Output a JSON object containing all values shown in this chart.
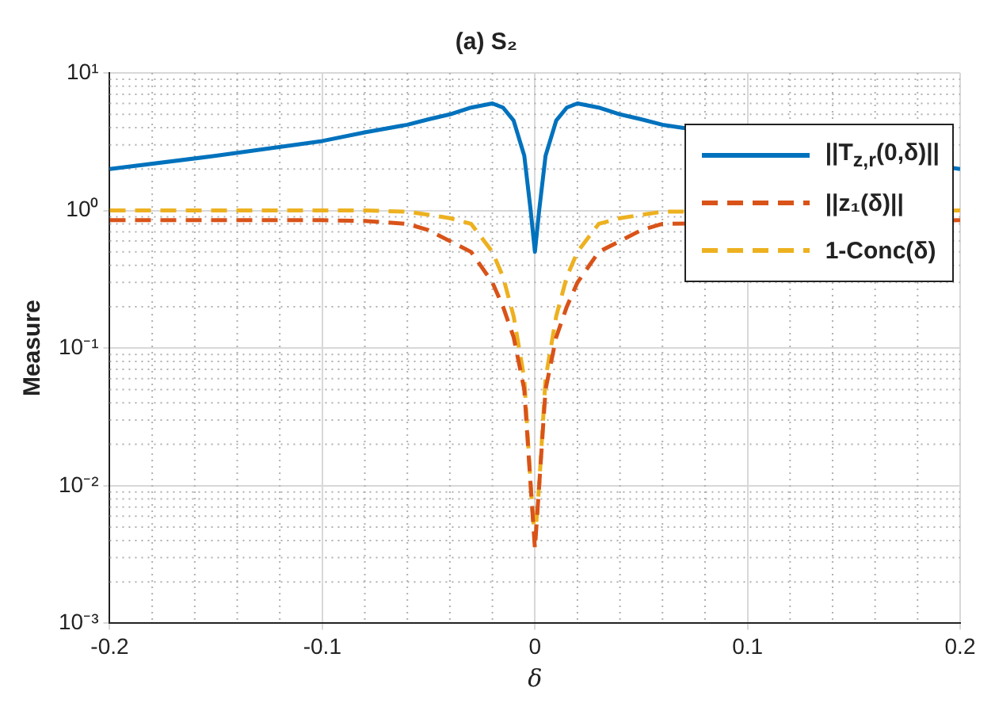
{
  "chart_data": {
    "type": "line",
    "title": "(a) S₂",
    "xlabel": "δ",
    "ylabel": "Measure",
    "log": "y",
    "grid": true,
    "legend": "top right",
    "marker": "none",
    "xlim": [
      -0.2,
      0.2
    ],
    "xticks": [
      -0.2,
      -0.1,
      0,
      0.1,
      0.2
    ],
    "ylim": [
      0.001,
      10
    ],
    "yticks": [
      {
        "value": 0.001,
        "label": "10⁻³"
      },
      {
        "value": 0.01,
        "label": "10⁻²"
      },
      {
        "value": 0.1,
        "label": "10⁻¹"
      },
      {
        "value": 1,
        "label": "10⁰"
      },
      {
        "value": 10,
        "label": "10¹"
      }
    ],
    "x": [
      -0.2,
      -0.15,
      -0.1,
      -0.08,
      -0.06,
      -0.05,
      -0.04,
      -0.03,
      -0.02,
      -0.015,
      -0.01,
      -0.005,
      -0.002,
      0,
      0.002,
      0.005,
      0.01,
      0.015,
      0.02,
      0.03,
      0.04,
      0.05,
      0.06,
      0.08,
      0.1,
      0.15,
      0.2
    ],
    "series": [
      {
        "name": "||T$_{z,r}$(0,δ)||",
        "color": "#0072bd",
        "line_style": "solid",
        "values": [
          2.0,
          2.5,
          3.2,
          3.7,
          4.2,
          4.6,
          5.0,
          5.6,
          6.0,
          5.6,
          4.5,
          2.5,
          1.0,
          0.5,
          1.0,
          2.5,
          4.5,
          5.6,
          6.0,
          5.6,
          5.0,
          4.6,
          4.2,
          null,
          null,
          null,
          2.0
        ]
      },
      {
        "name": "||z₁(δ)||",
        "color": "#d95319",
        "line_style": "dashed",
        "values": [
          0.85,
          0.85,
          0.85,
          0.84,
          0.8,
          0.72,
          0.6,
          0.5,
          0.3,
          0.2,
          0.12,
          0.05,
          0.01,
          0.0035,
          0.01,
          0.05,
          0.12,
          0.2,
          0.3,
          0.5,
          0.6,
          0.72,
          0.8,
          null,
          null,
          null,
          0.85
        ]
      },
      {
        "name": "1-Conc(δ)",
        "color": "#edb120",
        "line_style": "dashed",
        "values": [
          1.0,
          1.0,
          1.0,
          1.0,
          0.98,
          0.93,
          0.88,
          0.8,
          0.5,
          0.33,
          0.17,
          0.06,
          0.01,
          0.004,
          0.01,
          0.06,
          0.17,
          0.33,
          0.5,
          0.8,
          0.88,
          0.93,
          0.98,
          null,
          null,
          null,
          1.0
        ]
      }
    ]
  }
}
